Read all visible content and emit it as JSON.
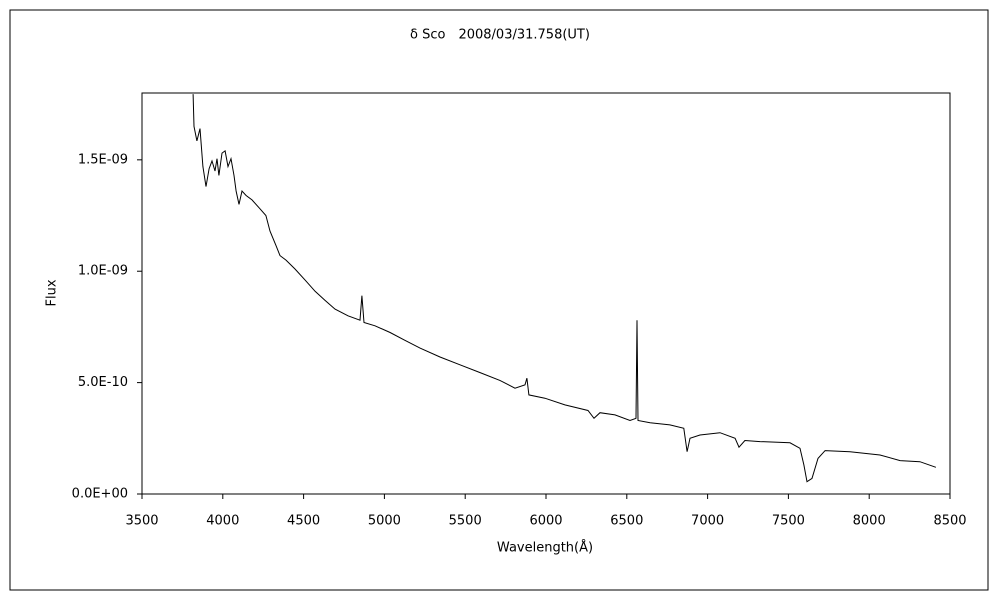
{
  "chart_data": {
    "type": "line",
    "title": "δ Sco　2008/03/31.758(UT)",
    "x_label": "Wavelength(Å)",
    "y_label": "Flux",
    "xlim": [
      3500,
      8500
    ],
    "xticks": [
      3500,
      4000,
      4500,
      5000,
      5500,
      6000,
      6500,
      7000,
      7500,
      8000,
      8500
    ],
    "ylim": [
      0,
      1.8e-09
    ],
    "yticks": [
      {
        "value": 0,
        "label": "0.0E+00"
      },
      {
        "value": 5e-10,
        "label": "5.0E-10"
      },
      {
        "value": 1e-09,
        "label": "1.0E-09"
      },
      {
        "value": 1.5e-09,
        "label": "1.5E-09"
      }
    ],
    "grid": false,
    "series": [
      {
        "color": "#000000",
        "x": [
          3816,
          3822,
          3840,
          3859,
          3877,
          3896,
          3915,
          3933,
          3952,
          3964,
          3976,
          3995,
          4014,
          4032,
          4051,
          4069,
          4082,
          4100,
          4119,
          4144,
          4181,
          4230,
          4267,
          4292,
          4329,
          4354,
          4391,
          4447,
          4509,
          4571,
          4632,
          4694,
          4775,
          4849,
          4861,
          4874,
          4942,
          5035,
          5127,
          5220,
          5344,
          5468,
          5592,
          5715,
          5808,
          5870,
          5882,
          5894,
          5993,
          6117,
          6260,
          6297,
          6334,
          6427,
          6520,
          6557,
          6563,
          6569,
          6644,
          6767,
          6853,
          6873,
          6891,
          6953,
          7077,
          7170,
          7194,
          7231,
          7324,
          7510,
          7572,
          7596,
          7615,
          7646,
          7683,
          7727,
          7881,
          8067,
          8191,
          8314,
          8413
        ],
        "values": [
          1.795e-09,
          1.65e-09,
          1.585e-09,
          1.64e-09,
          1.47e-09,
          1.38e-09,
          1.46e-09,
          1.495e-09,
          1.45e-09,
          1.505e-09,
          1.43e-09,
          1.53e-09,
          1.54e-09,
          1.47e-09,
          1.505e-09,
          1.43e-09,
          1.36e-09,
          1.3e-09,
          1.36e-09,
          1.34e-09,
          1.32e-09,
          1.28e-09,
          1.25e-09,
          1.18e-09,
          1.115e-09,
          1.07e-09,
          1.05e-09,
          1.01e-09,
          9.6e-10,
          9.1e-10,
          8.7e-10,
          8.3e-10,
          8e-10,
          7.8e-10,
          8.9e-10,
          7.7e-10,
          7.55e-10,
          7.25e-10,
          6.9e-10,
          6.55e-10,
          6.15e-10,
          5.8e-10,
          5.45e-10,
          5.1e-10,
          4.75e-10,
          4.9e-10,
          5.2e-10,
          4.45e-10,
          4.3e-10,
          4e-10,
          3.75e-10,
          3.4e-10,
          3.65e-10,
          3.55e-10,
          3.3e-10,
          3.4e-10,
          7.8e-10,
          3.3e-10,
          3.2e-10,
          3.1e-10,
          2.95e-10,
          1.9e-10,
          2.5e-10,
          2.65e-10,
          2.75e-10,
          2.5e-10,
          2.1e-10,
          2.4e-10,
          2.35e-10,
          2.3e-10,
          2.05e-10,
          1.3e-10,
          5.5e-11,
          7e-11,
          1.6e-10,
          1.95e-10,
          1.9e-10,
          1.75e-10,
          1.5e-10,
          1.45e-10,
          1.2e-10
        ]
      }
    ]
  }
}
